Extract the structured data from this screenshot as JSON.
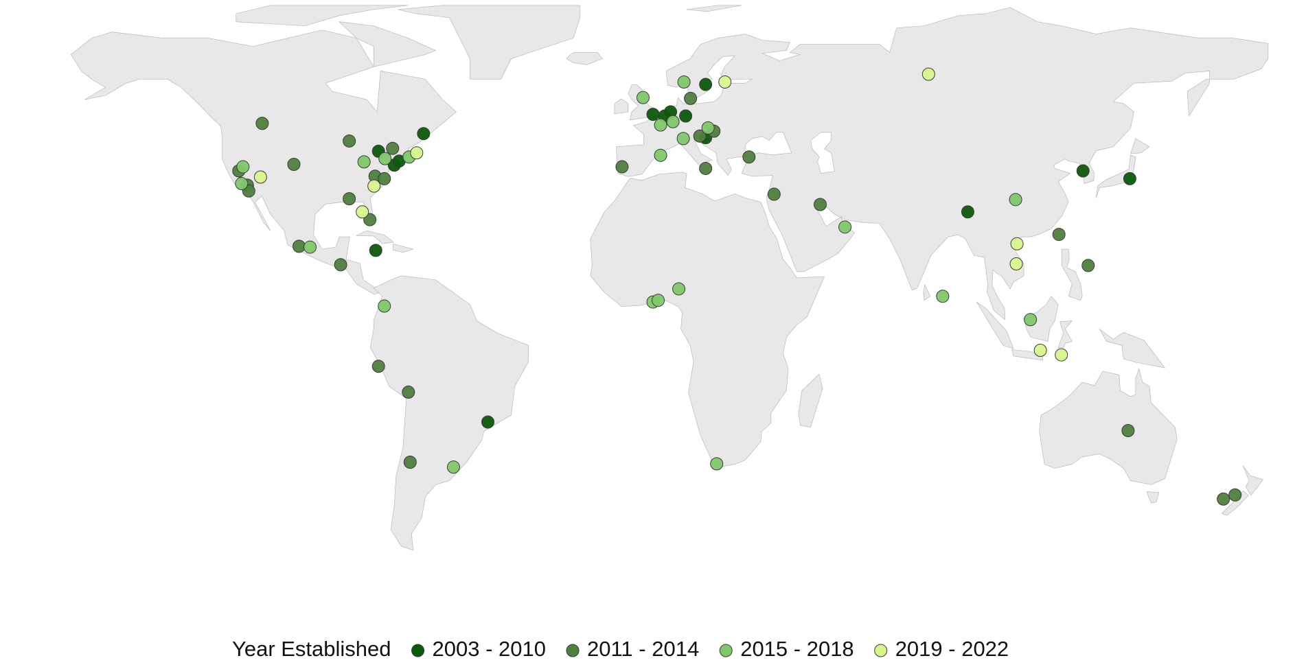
{
  "chart_data": {
    "type": "map",
    "legend_title": "Year Established",
    "series": [
      {
        "name": "2003 - 2010",
        "color": "#0b5a0b",
        "lon": [
          -78.6,
          -74.0,
          -72.6,
          -65.5,
          -79.4,
          1.2,
          4.6,
          6.3,
          10.7,
          16.5,
          16.5,
          92.7,
          126.2,
          139.8,
          -46.8
        ],
        "lat": [
          42.4,
          39.0,
          40.0,
          46.7,
          18.2,
          51.4,
          51.0,
          52.0,
          51.0,
          58.7,
          45.7,
          27.6,
          37.6,
          35.7,
          -23.7
        ]
      },
      {
        "name": "2011 - 2014",
        "color": "#4f7f3f",
        "lon": [
          -112.4,
          -87.1,
          -103.2,
          -119.2,
          -116.7,
          -116.3,
          -74.5,
          -79.6,
          -76.9,
          -87.1,
          -81.1,
          -101.7,
          -89.6,
          -7.8,
          12.1,
          14.8,
          18.9,
          16.5,
          29.1,
          36.4,
          49.8,
          119.2,
          127.7,
          -78.6,
          -69.9,
          -69.4,
          139.3,
          167.0,
          170.4
        ],
        "lat": [
          49.2,
          44.9,
          39.2,
          37.6,
          34.1,
          32.7,
          43.1,
          36.3,
          35.7,
          30.8,
          25.7,
          19.2,
          14.7,
          38.6,
          55.3,
          46.1,
          47.3,
          38.2,
          41.0,
          31.9,
          29.4,
          22.1,
          14.5,
          -10.1,
          -16.4,
          -33.5,
          -25.8,
          -42.5,
          -41.5
        ]
      },
      {
        "name": "2015 - 2018",
        "color": "#7fc86a",
        "lon": [
          -118.0,
          -118.4,
          -82.8,
          -76.7,
          -69.7,
          -98.5,
          -76.9,
          -1.7,
          10.2,
          3.4,
          7.0,
          10.0,
          17.2,
          3.4,
          106.6,
          57.0,
          8.7,
          1.2,
          2.7,
          85.4,
          110.9,
          -56.8,
          19.7
        ],
        "lat": [
          38.6,
          34.5,
          39.8,
          40.6,
          41.0,
          19.0,
          4.6,
          55.5,
          59.3,
          48.8,
          49.6,
          45.5,
          48.1,
          41.4,
          30.6,
          23.9,
          8.8,
          5.6,
          6.0,
          7.0,
          1.3,
          -34.7,
          -33.9
        ]
      },
      {
        "name": "2019 - 2022",
        "color": "#d6f58c",
        "lon": [
          -112.9,
          -79.9,
          -83.3,
          -67.5,
          22.1,
          81.3,
          107.0,
          106.8,
          113.8,
          119.9
        ],
        "lat": [
          36.1,
          33.9,
          27.6,
          42.0,
          59.3,
          61.2,
          19.8,
          14.9,
          -6.2,
          -7.3
        ]
      }
    ]
  }
}
